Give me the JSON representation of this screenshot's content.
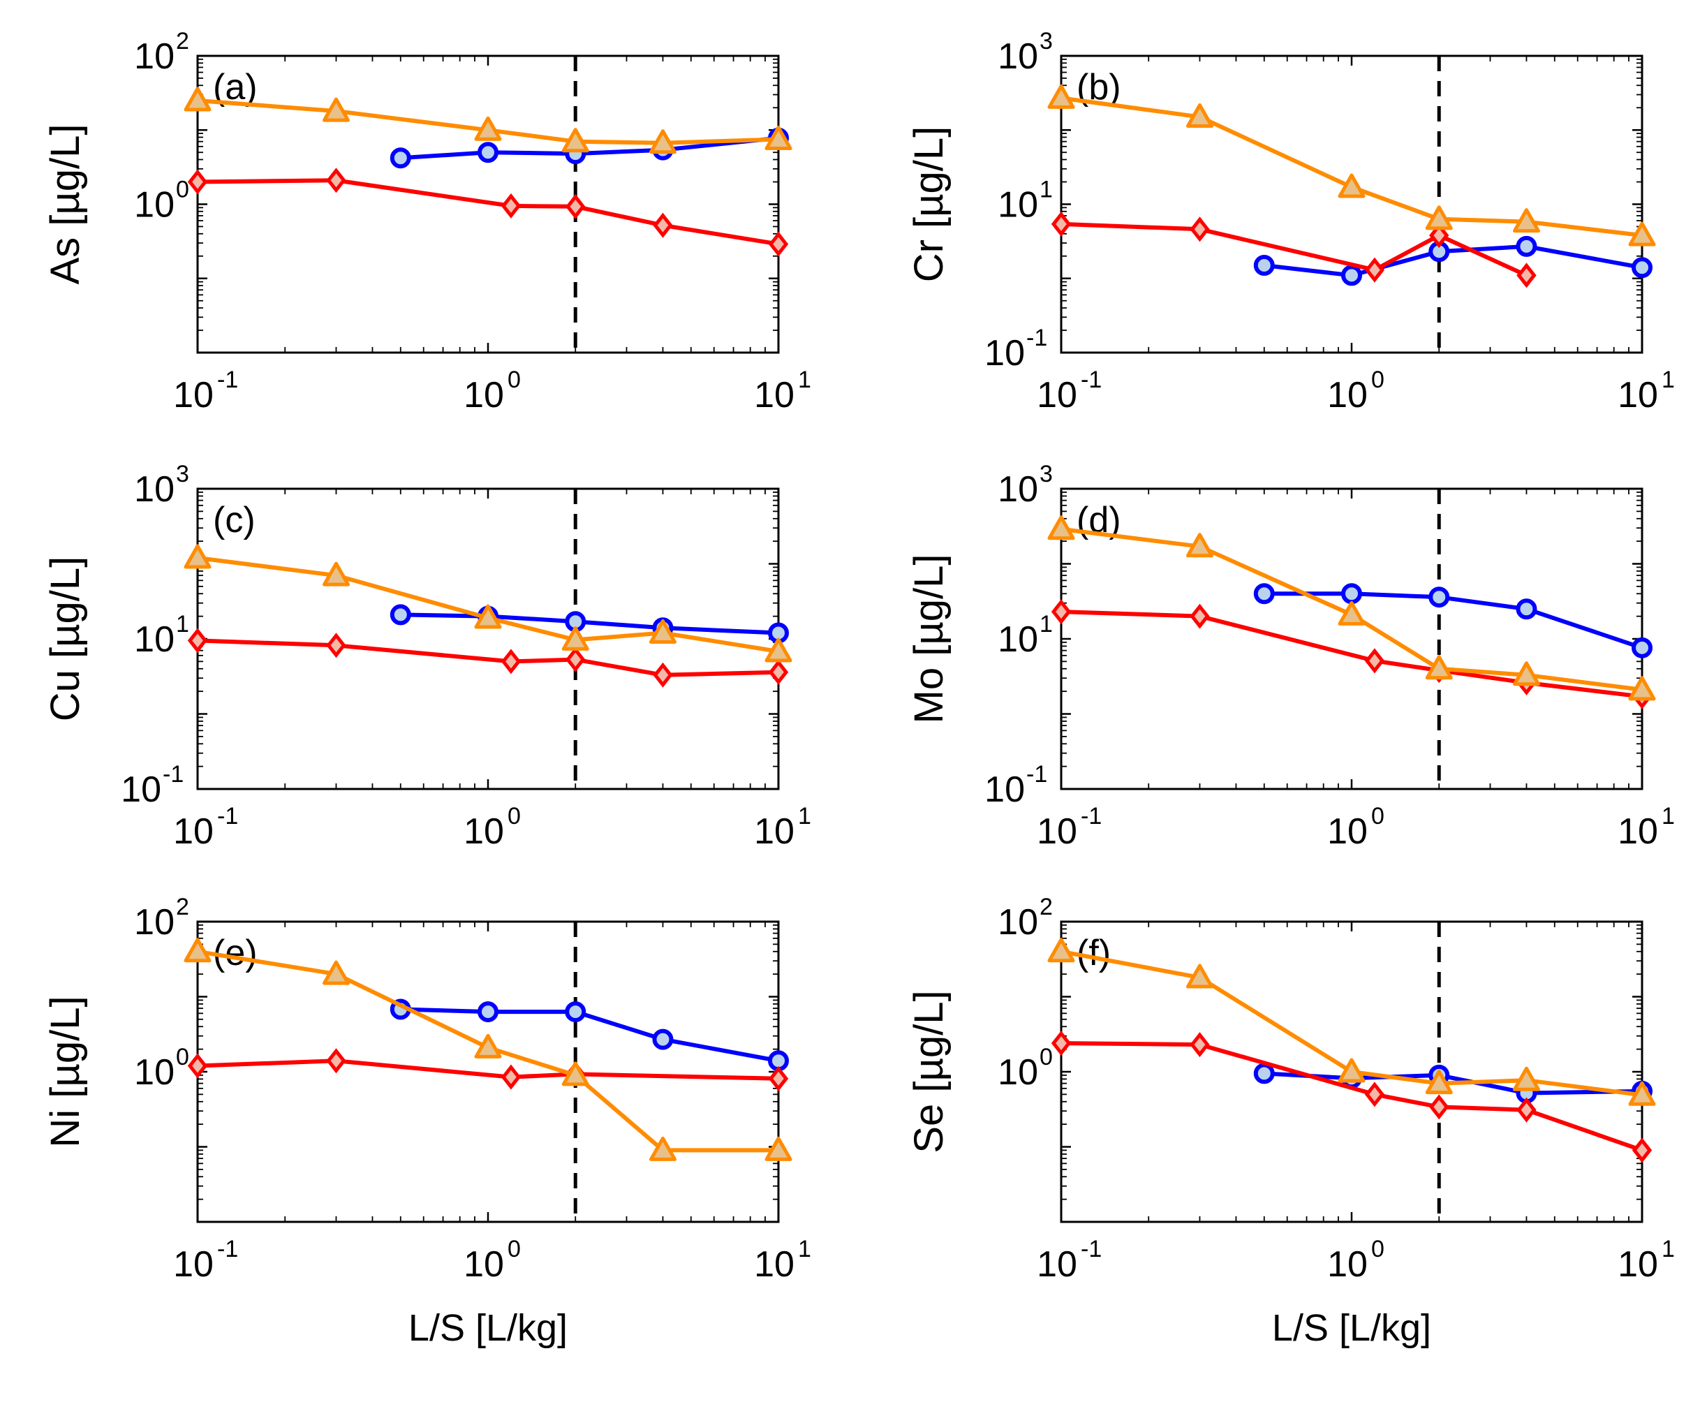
{
  "chart_data": [
    {
      "type": "line",
      "panel": "(a)",
      "ylabel": "As [µg/L]",
      "xlabel": "",
      "xlim": [
        0.1,
        10
      ],
      "ylim": [
        0.01,
        100
      ],
      "xscale": "log",
      "yscale": "log",
      "yticks_decades": [
        0,
        2
      ],
      "vertical_line_x": 2,
      "series": [
        {
          "name": "blue",
          "color": "#0000ff",
          "marker": "circle",
          "x": [
            0.5,
            1,
            2,
            4,
            10
          ],
          "y": [
            4.2,
            5.0,
            4.8,
            5.4,
            7.8
          ]
        },
        {
          "name": "red",
          "color": "#ff0000",
          "marker": "diamond",
          "x": [
            0.1,
            0.3,
            1.2,
            2,
            4,
            10
          ],
          "y": [
            2.0,
            2.1,
            0.95,
            0.93,
            0.52,
            0.29
          ]
        },
        {
          "name": "orange",
          "color": "#ff8c00",
          "marker": "triangle",
          "x": [
            0.1,
            0.3,
            1,
            2,
            4,
            10
          ],
          "y": [
            25,
            18,
            10,
            7,
            6.7,
            7.5
          ]
        }
      ]
    },
    {
      "type": "line",
      "panel": "(b)",
      "ylabel": "Cr [µg/L]",
      "xlabel": "",
      "xlim": [
        0.1,
        10
      ],
      "ylim": [
        0.1,
        1000
      ],
      "xscale": "log",
      "yscale": "log",
      "yticks_decades": [
        -1,
        1,
        3
      ],
      "vertical_line_x": 2,
      "series": [
        {
          "name": "blue",
          "color": "#0000ff",
          "marker": "circle",
          "x": [
            0.5,
            1,
            2,
            4,
            10
          ],
          "y": [
            1.5,
            1.1,
            2.3,
            2.7,
            1.4
          ]
        },
        {
          "name": "red",
          "color": "#ff0000",
          "marker": "diamond",
          "x": [
            0.1,
            0.3,
            1.2,
            2,
            4
          ],
          "y": [
            5.4,
            4.6,
            1.3,
            3.8,
            1.1
          ]
        },
        {
          "name": "orange",
          "color": "#ff8c00",
          "marker": "triangle",
          "x": [
            0.1,
            0.3,
            1,
            2,
            4,
            10
          ],
          "y": [
            270,
            150,
            17,
            6.3,
            5.8,
            3.8
          ]
        }
      ]
    },
    {
      "type": "line",
      "panel": "(c)",
      "ylabel": "Cu [µg/L]",
      "xlabel": "",
      "xlim": [
        0.1,
        10
      ],
      "ylim": [
        0.1,
        1000
      ],
      "xscale": "log",
      "yscale": "log",
      "yticks_decades": [
        -1,
        1,
        3
      ],
      "vertical_line_x": 2,
      "series": [
        {
          "name": "blue",
          "color": "#0000ff",
          "marker": "circle",
          "x": [
            0.5,
            1,
            2,
            4,
            10
          ],
          "y": [
            21,
            20,
            17,
            14,
            12
          ]
        },
        {
          "name": "red",
          "color": "#ff0000",
          "marker": "diamond",
          "x": [
            0.1,
            0.3,
            1.2,
            2,
            4,
            10
          ],
          "y": [
            9.5,
            8.2,
            5.0,
            5.3,
            3.3,
            3.6
          ]
        },
        {
          "name": "orange",
          "color": "#ff8c00",
          "marker": "triangle",
          "x": [
            0.1,
            0.3,
            1,
            2,
            4,
            10
          ],
          "y": [
            120,
            70,
            19,
            9.7,
            12,
            6.8
          ]
        }
      ]
    },
    {
      "type": "line",
      "panel": "(d)",
      "ylabel": "Mo [µg/L]",
      "xlabel": "",
      "xlim": [
        0.1,
        10
      ],
      "ylim": [
        0.1,
        1000
      ],
      "xscale": "log",
      "yscale": "log",
      "yticks_decades": [
        -1,
        1,
        3
      ],
      "vertical_line_x": 2,
      "series": [
        {
          "name": "blue",
          "color": "#0000ff",
          "marker": "circle",
          "x": [
            0.5,
            1,
            2,
            4,
            10
          ],
          "y": [
            40,
            40,
            36,
            25,
            7.6
          ]
        },
        {
          "name": "red",
          "color": "#ff0000",
          "marker": "diamond",
          "x": [
            0.1,
            0.3,
            1.2,
            2,
            4,
            10
          ],
          "y": [
            23,
            20,
            5.1,
            3.8,
            2.6,
            1.7
          ]
        },
        {
          "name": "orange",
          "color": "#ff8c00",
          "marker": "triangle",
          "x": [
            0.1,
            0.3,
            1,
            2,
            4,
            10
          ],
          "y": [
            290,
            170,
            21,
            4.0,
            3.3,
            2.1
          ]
        }
      ]
    },
    {
      "type": "line",
      "panel": "(e)",
      "ylabel": "Ni [µg/L]",
      "xlabel": "L/S [L/kg]",
      "xlim": [
        0.1,
        10
      ],
      "ylim": [
        0.01,
        100
      ],
      "xscale": "log",
      "yscale": "log",
      "yticks_decades": [
        0,
        2
      ],
      "vertical_line_x": 2,
      "series": [
        {
          "name": "blue",
          "color": "#0000ff",
          "marker": "circle",
          "x": [
            0.5,
            1,
            2,
            4,
            10
          ],
          "y": [
            6.8,
            6.3,
            6.3,
            2.7,
            1.4
          ]
        },
        {
          "name": "red",
          "color": "#ff0000",
          "marker": "diamond",
          "x": [
            0.1,
            0.3,
            1.2,
            2,
            10
          ],
          "y": [
            1.2,
            1.4,
            0.85,
            0.93,
            0.81
          ]
        },
        {
          "name": "orange",
          "color": "#ff8c00",
          "marker": "triangle",
          "x": [
            0.1,
            0.3,
            1,
            2,
            4,
            10
          ],
          "y": [
            40,
            20,
            2.1,
            0.9,
            0.09,
            0.09
          ]
        }
      ]
    },
    {
      "type": "line",
      "panel": "(f)",
      "ylabel": "Se [µg/L]",
      "xlabel": "L/S [L/kg]",
      "xlim": [
        0.1,
        10
      ],
      "ylim": [
        0.01,
        100
      ],
      "xscale": "log",
      "yscale": "log",
      "yticks_decades": [
        0,
        2
      ],
      "vertical_line_x": 2,
      "series": [
        {
          "name": "blue",
          "color": "#0000ff",
          "marker": "circle",
          "x": [
            0.5,
            1,
            2,
            4,
            10
          ],
          "y": [
            0.95,
            0.82,
            0.9,
            0.52,
            0.55
          ]
        },
        {
          "name": "red",
          "color": "#ff0000",
          "marker": "diamond",
          "x": [
            0.1,
            0.3,
            1.2,
            2,
            4,
            10
          ],
          "y": [
            2.4,
            2.3,
            0.5,
            0.34,
            0.31,
            0.09
          ]
        },
        {
          "name": "orange",
          "color": "#ff8c00",
          "marker": "triangle",
          "x": [
            0.1,
            0.3,
            1,
            2,
            4,
            10
          ],
          "y": [
            40,
            18,
            1.0,
            0.7,
            0.77,
            0.49
          ]
        }
      ]
    }
  ]
}
